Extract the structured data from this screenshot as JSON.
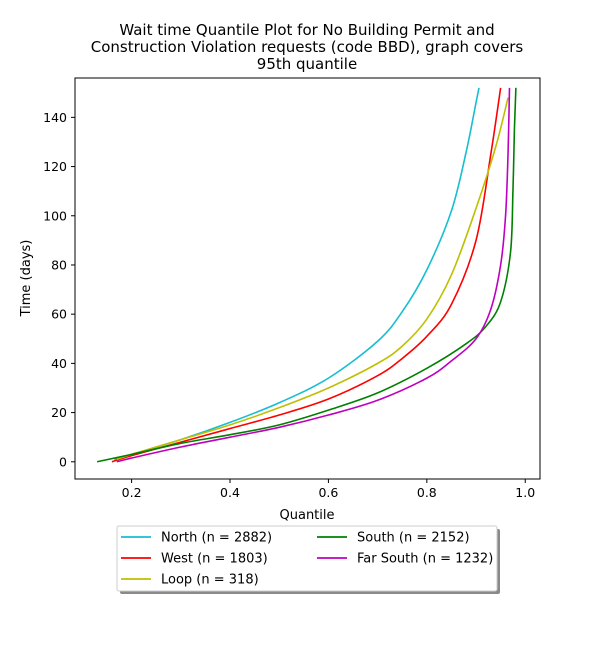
{
  "chart_data": {
    "type": "line",
    "title_lines": [
      "Wait time Quantile Plot for No Building Permit and",
      "Construction Violation  requests (code BBD), graph covers",
      "95th quantile"
    ],
    "xlabel": "Quantile",
    "ylabel": "Time (days)",
    "xlim": [
      0.085,
      1.03
    ],
    "ylim": [
      -7,
      156
    ],
    "xticks": [
      0.2,
      0.4,
      0.6,
      0.8,
      1.0
    ],
    "xtick_labels": [
      "0.2",
      "0.4",
      "0.6",
      "0.8",
      "1.0"
    ],
    "yticks": [
      0,
      20,
      40,
      60,
      80,
      100,
      120,
      140
    ],
    "ytick_labels": [
      "0",
      "20",
      "40",
      "60",
      "80",
      "100",
      "120",
      "140"
    ],
    "grid": false,
    "legend_position": "below-center",
    "series": [
      {
        "name": "North (n = 2882)",
        "color": "#17becf",
        "x": [
          0.165,
          0.2,
          0.3,
          0.4,
          0.5,
          0.6,
          0.7,
          0.75,
          0.8,
          0.85,
          0.88,
          0.9,
          0.906
        ],
        "y": [
          1,
          3,
          9,
          16,
          24,
          34,
          49,
          61,
          78,
          102,
          126,
          146,
          152
        ]
      },
      {
        "name": "West (n = 1803)",
        "color": "#ff0000",
        "x": [
          0.16,
          0.2,
          0.3,
          0.4,
          0.5,
          0.6,
          0.7,
          0.75,
          0.8,
          0.85,
          0.9,
          0.93,
          0.95
        ],
        "y": [
          0,
          2.5,
          8,
          13.5,
          19,
          25.5,
          35,
          42,
          51,
          64,
          90,
          125,
          152
        ]
      },
      {
        "name": "Loop (n = 318)",
        "color": "#bfbf00",
        "x": [
          0.17,
          0.2,
          0.3,
          0.4,
          0.5,
          0.6,
          0.7,
          0.75,
          0.8,
          0.85,
          0.9,
          0.94,
          0.965
        ],
        "y": [
          1,
          3,
          9,
          15,
          22,
          30,
          40,
          47,
          58,
          76,
          103,
          128,
          148
        ]
      },
      {
        "name": "South (n = 2152)",
        "color": "#008000",
        "x": [
          0.13,
          0.2,
          0.3,
          0.4,
          0.5,
          0.6,
          0.7,
          0.8,
          0.88,
          0.92,
          0.95,
          0.97,
          0.975,
          0.978,
          0.981
        ],
        "y": [
          0,
          3,
          7.5,
          11,
          15,
          21,
          28,
          38,
          48,
          55,
          65,
          85,
          110,
          135,
          152
        ]
      },
      {
        "name": "Far South (n = 1232)",
        "color": "#bf00bf",
        "x": [
          0.17,
          0.2,
          0.3,
          0.4,
          0.5,
          0.6,
          0.7,
          0.8,
          0.85,
          0.9,
          0.93,
          0.95,
          0.96,
          0.965,
          0.968
        ],
        "y": [
          0,
          1.5,
          6,
          10,
          14,
          19,
          25,
          34,
          41,
          50,
          62,
          80,
          100,
          125,
          152
        ]
      }
    ]
  }
}
